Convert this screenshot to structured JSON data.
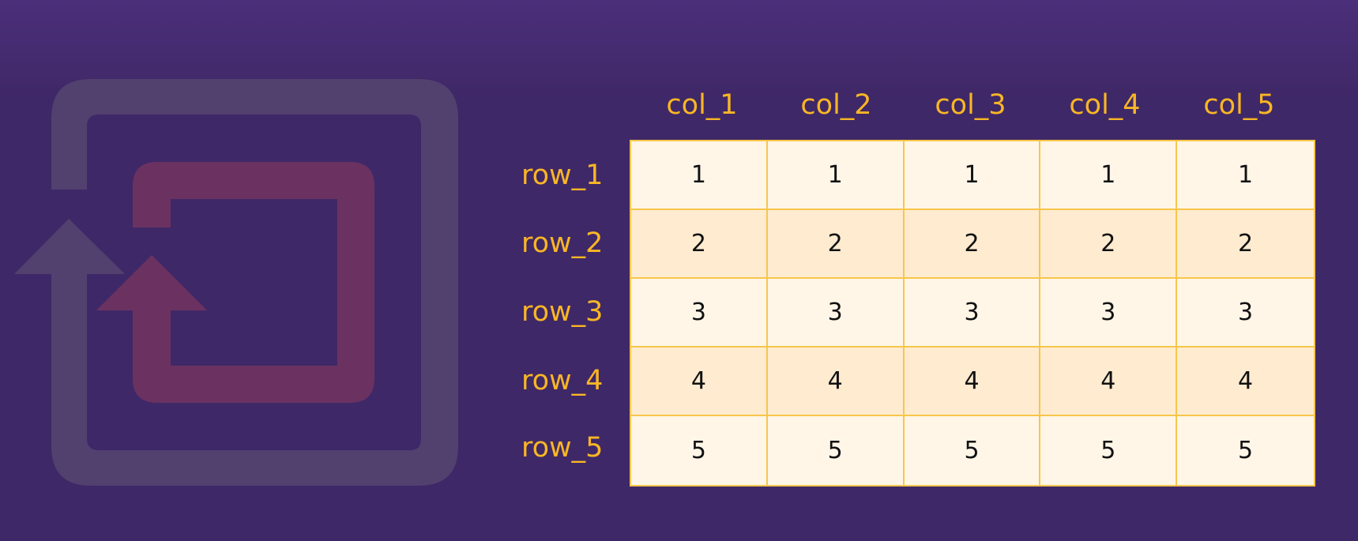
{
  "colors": {
    "background": "#3f2867",
    "label_accent": "#f9b625",
    "grid_line": "#f7c64a",
    "cell_light": "#fff6e8",
    "cell_dark": "#ffebd0",
    "icon_outer": "#52406f",
    "icon_inner": "#6b3261"
  },
  "icons": {
    "background_icon": "repeat-arrow-icon"
  },
  "table": {
    "columns": [
      "col_1",
      "col_2",
      "col_3",
      "col_4",
      "col_5"
    ],
    "rows": [
      "row_1",
      "row_2",
      "row_3",
      "row_4",
      "row_5"
    ],
    "cells": [
      [
        "1",
        "1",
        "1",
        "1",
        "1"
      ],
      [
        "2",
        "2",
        "2",
        "2",
        "2"
      ],
      [
        "3",
        "3",
        "3",
        "3",
        "3"
      ],
      [
        "4",
        "4",
        "4",
        "4",
        "4"
      ],
      [
        "5",
        "5",
        "5",
        "5",
        "5"
      ]
    ]
  }
}
